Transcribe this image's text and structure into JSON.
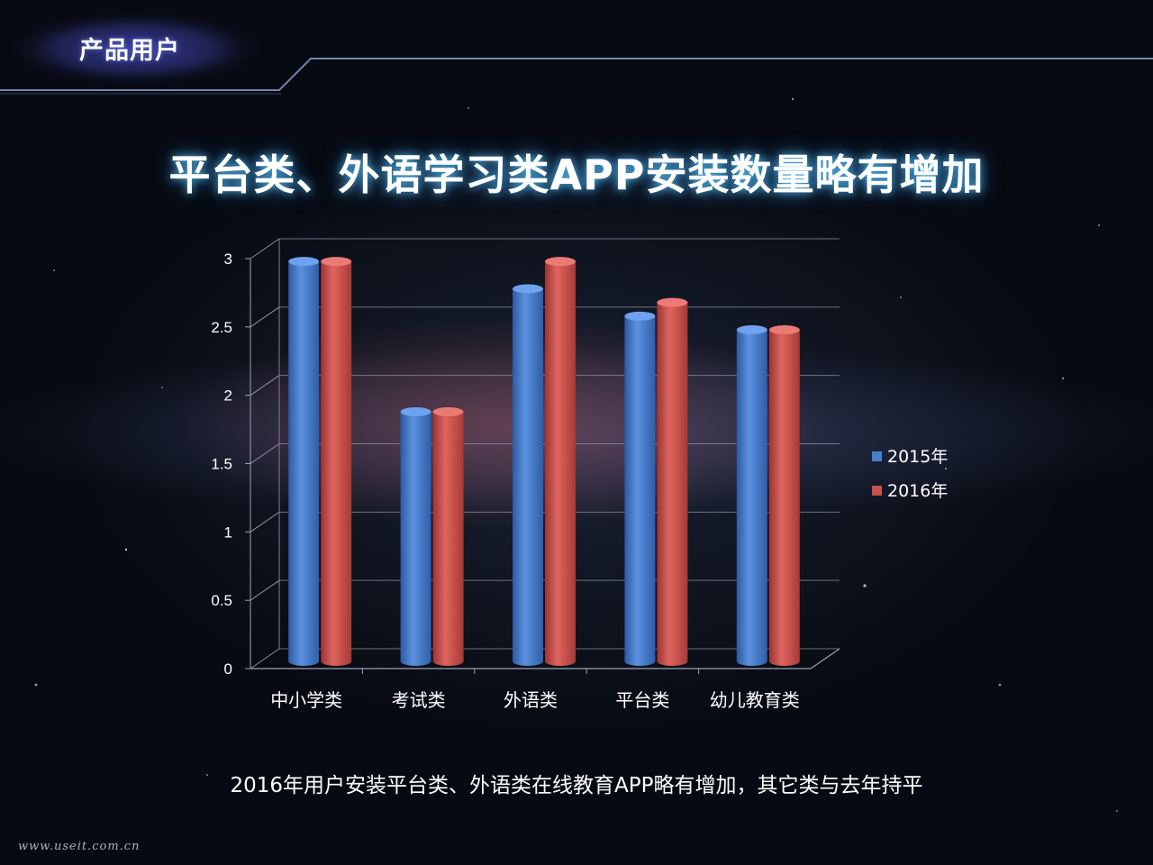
{
  "header": {
    "title": "产品用户"
  },
  "main": {
    "title": "平台类、外语学习类APP安装数量略有增加",
    "caption": "2016年用户安装平台类、外语类在线教育APP略有增加，其它类与去年持平",
    "watermark": "www.useit.com.cn"
  },
  "chart_data": {
    "type": "bar",
    "categories": [
      "中小学类",
      "考试类",
      "外语类",
      "平台类",
      "幼儿教育类"
    ],
    "series": [
      {
        "name": "2015年",
        "values": [
          2.9,
          1.8,
          2.7,
          2.5,
          2.4
        ],
        "color": "#4a7fd0"
      },
      {
        "name": "2016年",
        "values": [
          2.9,
          1.8,
          2.9,
          2.6,
          2.4
        ],
        "color": "#c9504c"
      }
    ],
    "yticks": [
      "0",
      "0.5",
      "1",
      "1.5",
      "2",
      "2.5",
      "3"
    ],
    "ylim": [
      0,
      3
    ],
    "grid": true,
    "legend_position": "right"
  }
}
